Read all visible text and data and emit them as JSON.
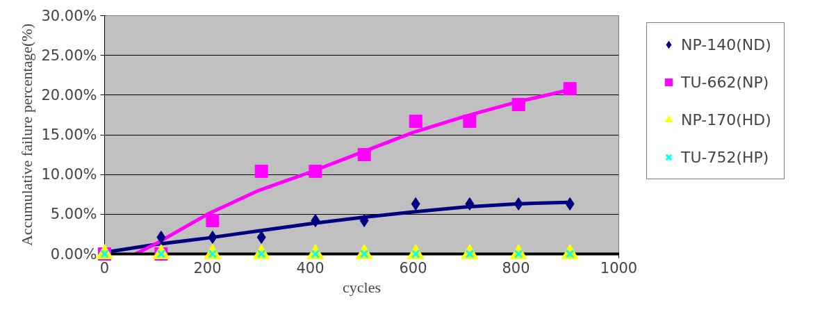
{
  "chart_data": {
    "type": "scatter",
    "xlabel": "cycles",
    "ylabel": "Accumulative failure percentage(%)",
    "xlim": [
      0,
      1000
    ],
    "ylim": [
      0,
      30
    ],
    "xticks": [
      0,
      200,
      400,
      600,
      800,
      1000
    ],
    "yticks": [
      {
        "value": 0,
        "label": "0.00%"
      },
      {
        "value": 5,
        "label": "5.00%"
      },
      {
        "value": 10,
        "label": "10.00%"
      },
      {
        "value": 15,
        "label": "15.00%"
      },
      {
        "value": 20,
        "label": "20.00%"
      },
      {
        "value": 25,
        "label": "25.00%"
      },
      {
        "value": 30,
        "label": "30.00%"
      }
    ],
    "grid": "y",
    "legend": "right",
    "series": [
      {
        "type": "line",
        "marker": "none",
        "color": "#000080",
        "x": [
          0,
          100,
          200,
          300,
          400,
          500,
          600,
          700,
          800,
          900
        ],
        "values": [
          0.2,
          1.2,
          2.0,
          2.9,
          3.8,
          4.6,
          5.3,
          5.9,
          6.3,
          6.5
        ]
      },
      {
        "type": "line",
        "marker": "none",
        "color": "#ff00ff",
        "x": [
          60,
          100,
          200,
          300,
          400,
          500,
          600,
          700,
          800,
          900
        ],
        "values": [
          0,
          1.3,
          5.0,
          8.0,
          10.3,
          12.8,
          15.3,
          17.3,
          19.1,
          20.6
        ]
      },
      {
        "name": "NP-140(ND)",
        "marker": "diamond",
        "color": "#000080",
        "x": [
          110,
          210,
          305,
          410,
          505,
          605,
          710,
          805,
          905
        ],
        "values": [
          2.1,
          2.1,
          2.1,
          4.2,
          4.2,
          6.3,
          6.3,
          6.3,
          6.3
        ]
      },
      {
        "name": "TU-662(NP)",
        "marker": "square",
        "color": "#ff00ff",
        "x": [
          0,
          110,
          210,
          305,
          410,
          505,
          605,
          710,
          805,
          905
        ],
        "values": [
          0,
          0,
          4.2,
          10.4,
          10.4,
          12.5,
          16.7,
          16.7,
          18.8,
          20.8
        ]
      },
      {
        "name": "NP-170(HD)",
        "marker": "triangle",
        "color": "#ffff00",
        "x": [
          0,
          110,
          210,
          305,
          410,
          505,
          605,
          710,
          805,
          905
        ],
        "values": [
          0,
          0,
          0,
          0,
          0,
          0,
          0,
          0,
          0,
          0
        ]
      },
      {
        "name": "TU-752(HP)",
        "marker": "cross",
        "color": "#00ffff",
        "x": [
          0,
          110,
          210,
          305,
          410,
          505,
          605,
          710,
          805,
          905
        ],
        "values": [
          0,
          0,
          0,
          0,
          0,
          0,
          0,
          0,
          0,
          0
        ]
      }
    ]
  }
}
